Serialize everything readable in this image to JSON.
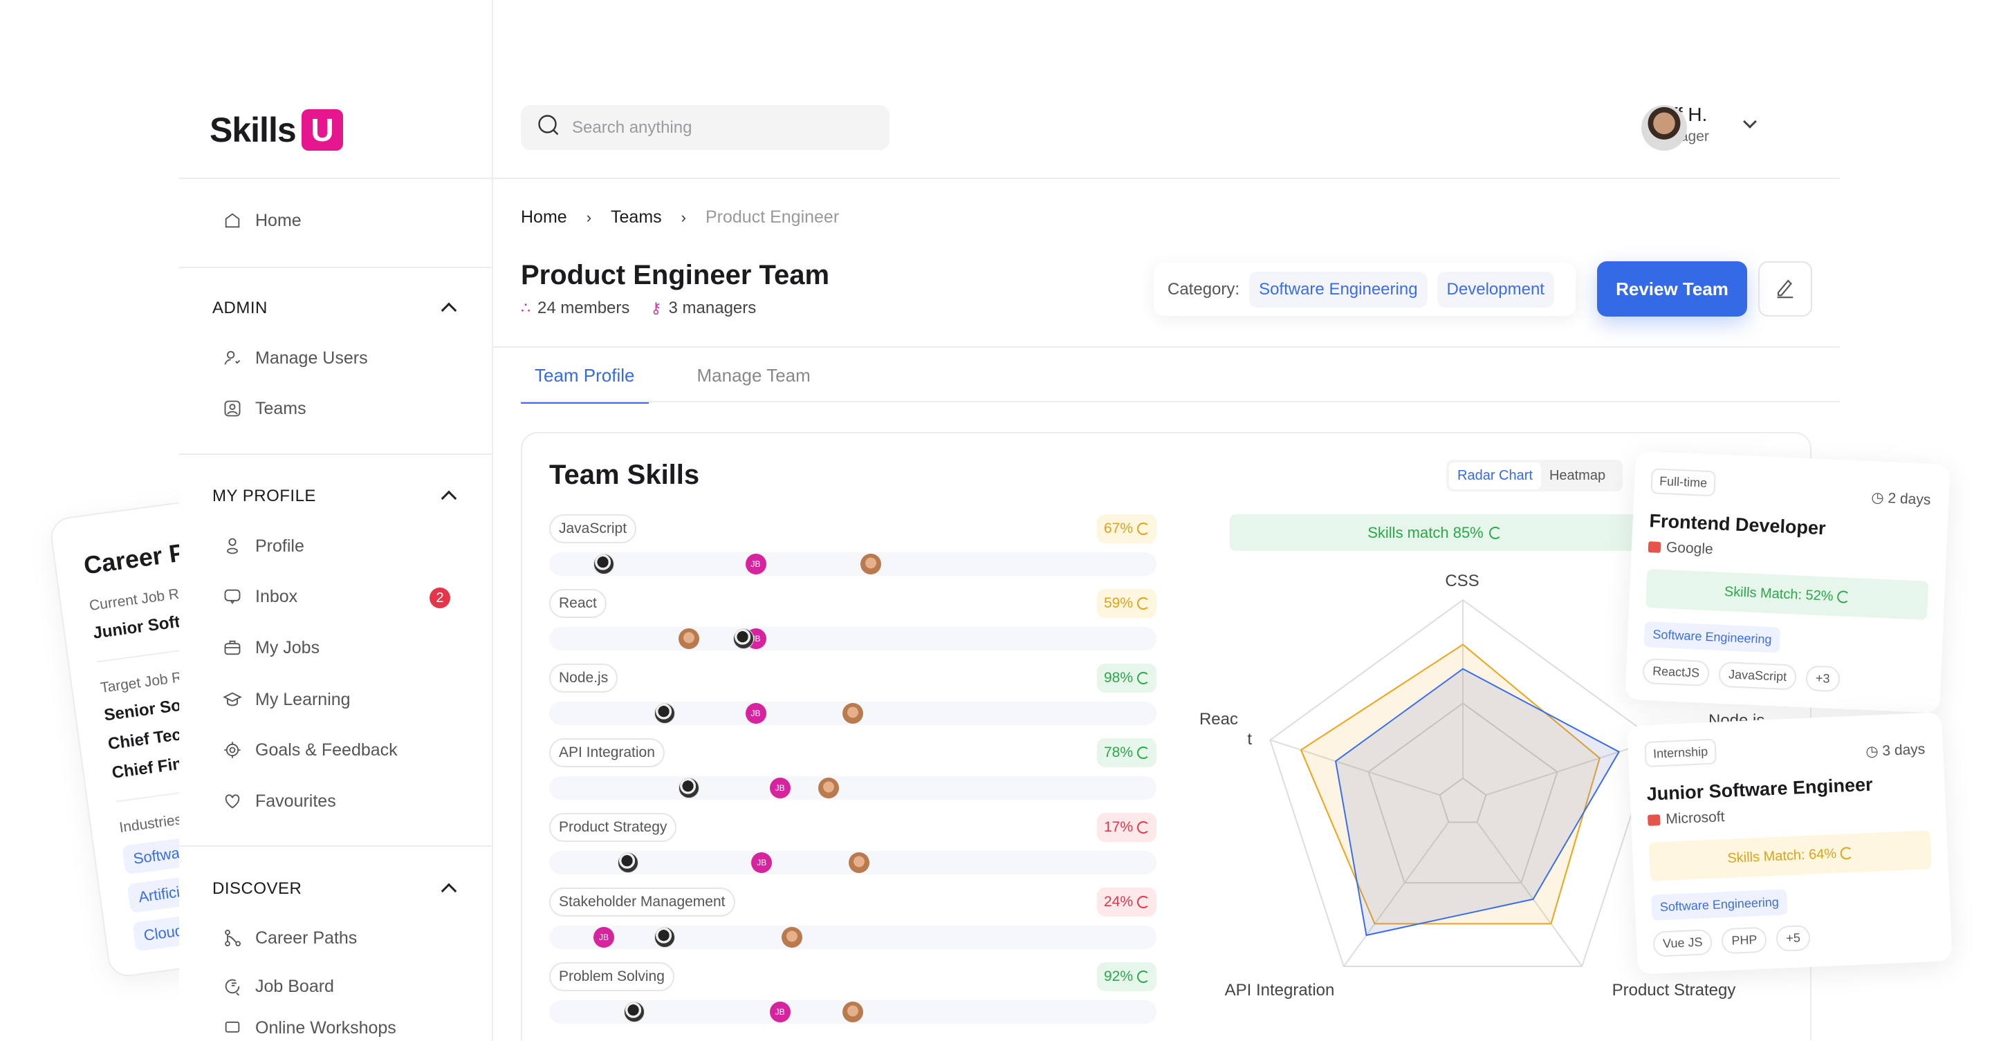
{
  "brand": {
    "name": "Skills",
    "mark": "U",
    "accent": "#e6168f"
  },
  "search": {
    "placeholder": "Search anything"
  },
  "user": {
    "name": "Jeff H.",
    "role": "Manager"
  },
  "sidebar": {
    "home": "Home",
    "admin": {
      "title": "ADMIN",
      "items": [
        "Manage Users",
        "Teams"
      ]
    },
    "profile": {
      "title": "MY PROFILE",
      "items": [
        "Profile",
        "Inbox",
        "My Jobs",
        "My Learning",
        "Goals & Feedback",
        "Favourites"
      ],
      "inbox_badge": "2"
    },
    "discover": {
      "title": "DISCOVER",
      "items": [
        "Career Paths",
        "Job Board",
        "Online Workshops"
      ]
    }
  },
  "breadcrumb": [
    "Home",
    "Teams",
    "Product Engineer"
  ],
  "page": {
    "title": "Product Engineer Team",
    "members": "24 members",
    "managers": "3 managers",
    "category_label": "Category:",
    "categories": [
      "Software Engineering",
      "Development"
    ],
    "review_button": "Review Team"
  },
  "tabs": [
    "Team Profile",
    "Manage Team"
  ],
  "team_skills": {
    "title": "Team Skills",
    "skills": [
      {
        "name": "JavaScript",
        "pct": "67%",
        "level": "mid",
        "members": [
          {
            "kind": "p1",
            "pos": 9
          },
          {
            "kind": "jb",
            "pos": 34
          },
          {
            "kind": "p2",
            "pos": 53
          }
        ]
      },
      {
        "name": "React",
        "pct": "59%",
        "level": "mid",
        "members": [
          {
            "kind": "p2",
            "pos": 23
          },
          {
            "kind": "jb",
            "pos": 34
          },
          {
            "kind": "p1",
            "pos": 32
          }
        ]
      },
      {
        "name": "Node.js",
        "pct": "98%",
        "level": "high",
        "members": [
          {
            "kind": "p1",
            "pos": 19
          },
          {
            "kind": "jb",
            "pos": 34
          },
          {
            "kind": "p2",
            "pos": 50
          }
        ]
      },
      {
        "name": "API Integration",
        "pct": "78%",
        "level": "high",
        "members": [
          {
            "kind": "p1",
            "pos": 23
          },
          {
            "kind": "jb",
            "pos": 38
          },
          {
            "kind": "p2",
            "pos": 46
          }
        ]
      },
      {
        "name": "Product Strategy",
        "pct": "17%",
        "level": "low",
        "members": [
          {
            "kind": "p1",
            "pos": 13
          },
          {
            "kind": "jb",
            "pos": 35
          },
          {
            "kind": "p2",
            "pos": 51
          }
        ]
      },
      {
        "name": "Stakeholder Management",
        "pct": "24%",
        "level": "low",
        "members": [
          {
            "kind": "jb",
            "pos": 9
          },
          {
            "kind": "p1",
            "pos": 19
          },
          {
            "kind": "p2",
            "pos": 40
          }
        ]
      },
      {
        "name": "Problem Solving",
        "pct": "92%",
        "level": "high",
        "members": [
          {
            "kind": "p1",
            "pos": 14
          },
          {
            "kind": "jb",
            "pos": 38
          },
          {
            "kind": "p2",
            "pos": 50
          }
        ]
      }
    ],
    "member_initials": "JB",
    "level_colors": {
      "high": {
        "bg": "#e6f6ea",
        "fg": "#2aa84a"
      },
      "mid": {
        "bg": "#fef6de",
        "fg": "#e0a21a"
      },
      "low": {
        "bg": "#fde8ea",
        "fg": "#e5354a"
      }
    }
  },
  "view_toggle": {
    "options": [
      "Radar Chart",
      "Heatmap"
    ],
    "selected": "Radar Chart"
  },
  "skills_match": "Skills match 85%",
  "chart_data": {
    "type": "radar",
    "axes": [
      "CSS",
      "Node.js",
      "Product Strategy",
      "API Integration",
      "React"
    ],
    "axis_labels_shown": [
      "CSS",
      "Node.js",
      "Product Strategy",
      "API Integration",
      "Reac",
      "t"
    ],
    "range": [
      0,
      1
    ],
    "series": [
      {
        "color": "#f0a316",
        "values": [
          0.78,
          0.71,
          0.74,
          0.74,
          0.84
        ]
      },
      {
        "color": "#3b6de8",
        "values": [
          0.66,
          0.81,
          0.59,
          0.81,
          0.66
        ]
      }
    ]
  },
  "job_cards": [
    {
      "type": "Full-time",
      "age": "2 days",
      "title": "Frontend Developer",
      "company": "Google",
      "match": "Skills Match: 52%",
      "match_level": "high",
      "industry": "Software Engineering",
      "tags": [
        "ReactJS",
        "JavaScript",
        "+3"
      ]
    },
    {
      "type": "Internship",
      "age": "3 days",
      "title": "Junior Software Engineer",
      "company": "Microsoft",
      "match": "Skills Match: 64%",
      "match_level": "mid",
      "industry": "Software Engineering",
      "tags": [
        "Vue JS",
        "PHP",
        "+5"
      ]
    }
  ],
  "career_card": {
    "title": "Career Pa",
    "current_label": "Current Job Rol",
    "current": "Junior Softwa",
    "target_label": "Target Job Ro",
    "targets": [
      "Senior Softw",
      "Chief Techn",
      "Chief Finan"
    ],
    "industries_label": "Industries",
    "industries": [
      "Software",
      "Artificia",
      "Cloud"
    ]
  }
}
